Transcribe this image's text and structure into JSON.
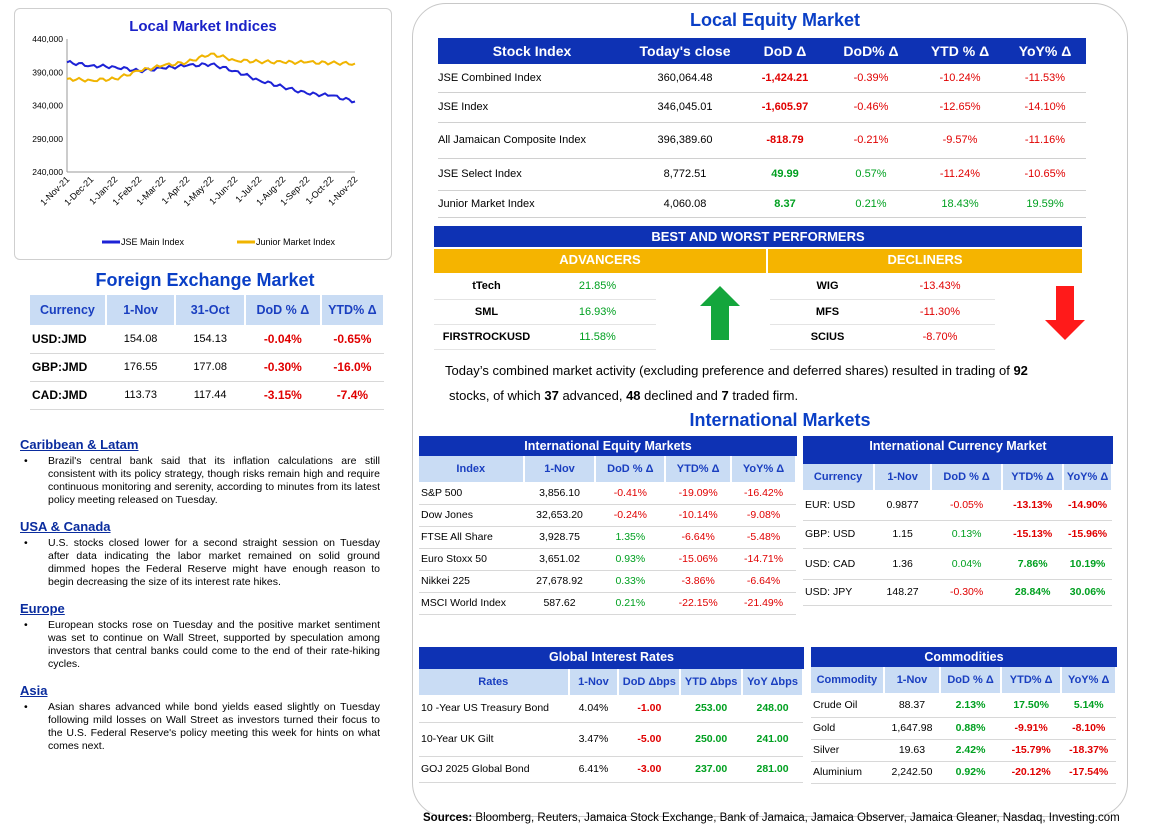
{
  "chart": {
    "title": "Local Market Indices",
    "y_ticks": [
      "440,000",
      "390,000",
      "340,000",
      "290,000",
      "240,000"
    ],
    "x_ticks": [
      "1-Nov-21",
      "1-Dec-21",
      "1-Jan-22",
      "1-Feb-22",
      "1-Mar-22",
      "1-Apr-22",
      "1-May-22",
      "1-Jun-22",
      "1-Jul-22",
      "1-Aug-22",
      "1-Sep-22",
      "1-Oct-22",
      "1-Nov-22"
    ],
    "legend": [
      "JSE Main Index",
      "Junior Market Index"
    ],
    "colors": {
      "main": "#1d22d6",
      "junior": "#f0b400"
    }
  },
  "chart_data": {
    "type": "line",
    "title": "Local Market Indices",
    "x": [
      "1-Nov-21",
      "1-Dec-21",
      "1-Jan-22",
      "1-Feb-22",
      "1-Mar-22",
      "1-Apr-22",
      "1-May-22",
      "1-Jun-22",
      "1-Jul-22",
      "1-Aug-22",
      "1-Sep-22",
      "1-Oct-22",
      "1-Nov-22"
    ],
    "series": [
      {
        "name": "JSE Main Index",
        "values": [
          405000,
          400000,
          398000,
          392000,
          396000,
          400000,
          402000,
          392000,
          378000,
          368000,
          358000,
          355000,
          346000
        ]
      },
      {
        "name": "Junior Market Index",
        "values": [
          380000,
          378000,
          380000,
          392000,
          400000,
          405000,
          418000,
          408000,
          406000,
          405000,
          405000,
          404000,
          403000
        ]
      }
    ],
    "ylim": [
      240000,
      440000
    ]
  },
  "fx": {
    "title": "Foreign Exchange Market",
    "headers": [
      "Currency",
      "1-Nov",
      "31-Oct",
      "DoD % Δ",
      "YTD% Δ"
    ],
    "rows": [
      {
        "cur": "USD:JMD",
        "a": "154.08",
        "b": "154.13",
        "dod": "-0.04%",
        "ytd": "-0.65%"
      },
      {
        "cur": "GBP:JMD",
        "a": "176.55",
        "b": "177.08",
        "dod": "-0.30%",
        "ytd": "-16.0%"
      },
      {
        "cur": "CAD:JMD",
        "a": "113.73",
        "b": "117.44",
        "dod": "-3.15%",
        "ytd": "-7.4%"
      }
    ]
  },
  "news": [
    {
      "heading": "Caribbean & Latam",
      "text": "Brazil's central bank said that its inflation calculations are still consistent with its policy strategy, though risks remain high and require continuous monitoring and serenity, according to minutes from its latest policy meeting released on Tuesday."
    },
    {
      "heading": "USA & Canada",
      "text": "U.S. stocks closed lower for a second straight session on Tuesday after data indicating the labor market remained on solid ground dimmed hopes the Federal Reserve might have enough reason to begin decreasing the size of its interest rate hikes."
    },
    {
      "heading": "Europe",
      "text": "European stocks rose on Tuesday and the positive market sentiment was set to continue on Wall Street, supported by speculation among investors that central banks could come to the end of their rate-hiking cycles."
    },
    {
      "heading": "Asia",
      "text": "Asian shares advanced while bond yields eased slightly on Tuesday following mild losses on Wall Street as investors turned their focus to the U.S. Federal Reserve's policy meeting this week for hints on what comes next."
    }
  ],
  "equity": {
    "title": "Local Equity Market",
    "headers": [
      "Stock Index",
      "Today's close",
      "DoD  Δ",
      "DoD% Δ",
      "YTD % Δ",
      "YoY% Δ"
    ],
    "rows": [
      {
        "name": "JSE Combined Index",
        "close": "360,064.48",
        "dod": "-1,424.21",
        "dodp": "-0.39%",
        "ytd": "-10.24%",
        "yoy": "-11.53%"
      },
      {
        "name": "JSE Index",
        "close": "346,045.01",
        "dod": "-1,605.97",
        "dodp": "-0.46%",
        "ytd": "-12.65%",
        "yoy": "-14.10%"
      },
      {
        "name": "All Jamaican Composite Index",
        "close": "396,389.60",
        "dod": "-818.79",
        "dodp": "-0.21%",
        "ytd": "-9.57%",
        "yoy": "-11.16%"
      },
      {
        "name": "JSE Select Index",
        "close": "8,772.51",
        "dod": "49.99",
        "dodp": "0.57%",
        "ytd": "-11.24%",
        "yoy": "-10.65%"
      },
      {
        "name": "Junior Market Index",
        "close": "4,060.08",
        "dod": "8.37",
        "dodp": "0.21%",
        "ytd": "18.43%",
        "yoy": "19.59%"
      }
    ]
  },
  "performers": {
    "title": "BEST AND WORST PERFORMERS",
    "adv_label": "ADVANCERS",
    "dec_label": "DECLINERS",
    "advancers": [
      {
        "name": "tTech",
        "pct": "21.85%"
      },
      {
        "name": "SML",
        "pct": "16.93%"
      },
      {
        "name": "FIRSTROCKUSD",
        "pct": "11.58%"
      }
    ],
    "decliners": [
      {
        "name": "WIG",
        "pct": "-13.43%"
      },
      {
        "name": "MFS",
        "pct": "-11.30%"
      },
      {
        "name": "SCIUS",
        "pct": "-8.70%"
      }
    ]
  },
  "summary": {
    "line1_pre": "Today’s combined market activity (excluding preference and deferred shares) resulted in trading of ",
    "traded": "92",
    "line2_pre": "stocks, of which ",
    "advanced": "37",
    "mid1": " advanced, ",
    "declined": "48",
    "mid2": " declined and ",
    "firm": "7",
    "end": " traded firm."
  },
  "intl": {
    "title": "International Markets",
    "equity": {
      "title": "International Equity Markets",
      "headers": [
        "Index",
        "1-Nov",
        "DoD % Δ",
        "YTD% Δ",
        "YoY% Δ"
      ],
      "rows": [
        {
          "name": "S&P 500",
          "v": "3,856.10",
          "dod": "-0.41%",
          "ytd": "-19.09%",
          "yoy": "-16.42%"
        },
        {
          "name": "Dow Jones",
          "v": "32,653.20",
          "dod": "-0.24%",
          "ytd": "-10.14%",
          "yoy": "-9.08%"
        },
        {
          "name": "FTSE All Share",
          "v": "3,928.75",
          "dod": "1.35%",
          "ytd": "-6.64%",
          "yoy": "-5.48%"
        },
        {
          "name": "Euro Stoxx 50",
          "v": "3,651.02",
          "dod": "0.93%",
          "ytd": "-15.06%",
          "yoy": "-14.71%"
        },
        {
          "name": "Nikkei 225",
          "v": "27,678.92",
          "dod": "0.33%",
          "ytd": "-3.86%",
          "yoy": "-6.64%"
        },
        {
          "name": "MSCI World Index",
          "v": "587.62",
          "dod": "0.21%",
          "ytd": "-22.15%",
          "yoy": "-21.49%"
        }
      ]
    },
    "currency": {
      "title": "International Currency Market",
      "headers": [
        "Currency",
        "1-Nov",
        "DoD % Δ",
        "YTD% Δ",
        "YoY% Δ"
      ],
      "rows": [
        {
          "name": "EUR: USD",
          "v": "0.9877",
          "dod": "-0.05%",
          "ytd": "-13.13%",
          "yoy": "-14.90%"
        },
        {
          "name": "GBP: USD",
          "v": "1.15",
          "dod": "0.13%",
          "ytd": "-15.13%",
          "yoy": "-15.96%"
        },
        {
          "name": "USD: CAD",
          "v": "1.36",
          "dod": "0.04%",
          "ytd": "7.86%",
          "yoy": "10.19%"
        },
        {
          "name": "USD: JPY",
          "v": "148.27",
          "dod": "-0.30%",
          "ytd": "28.84%",
          "yoy": "30.06%"
        }
      ]
    },
    "rates": {
      "title": "Global Interest Rates",
      "headers": [
        "Rates",
        "1-Nov",
        "DoD Δbps",
        "YTD Δbps",
        "YoY Δbps"
      ],
      "rows": [
        {
          "name": "10 -Year US Treasury Bond",
          "v": "4.04%",
          "dod": "-1.00",
          "ytd": "253.00",
          "yoy": "248.00"
        },
        {
          "name": "10-Year UK Gilt",
          "v": "3.47%",
          "dod": "-5.00",
          "ytd": "250.00",
          "yoy": "241.00"
        },
        {
          "name": "GOJ 2025 Global Bond",
          "v": "6.41%",
          "dod": "-3.00",
          "ytd": "237.00",
          "yoy": "281.00"
        }
      ]
    },
    "commodities": {
      "title": "Commodities",
      "headers": [
        "Commodity",
        "1-Nov",
        "DoD % Δ",
        "YTD% Δ",
        "YoY% Δ"
      ],
      "rows": [
        {
          "name": "Crude Oil",
          "v": "88.37",
          "dod": "2.13%",
          "ytd": "17.50%",
          "yoy": "5.14%"
        },
        {
          "name": "Gold",
          "v": "1,647.98",
          "dod": "0.88%",
          "ytd": "-9.91%",
          "yoy": "-8.10%"
        },
        {
          "name": "Silver",
          "v": "19.63",
          "dod": "2.42%",
          "ytd": "-15.79%",
          "yoy": "-18.37%"
        },
        {
          "name": "Aluminium",
          "v": "2,242.50",
          "dod": "0.92%",
          "ytd": "-20.12%",
          "yoy": "-17.54%"
        }
      ]
    }
  },
  "sources": {
    "label": "Sources:",
    "text": " Bloomberg, Reuters, Jamaica Stock Exchange, Bank of Jamaica, Jamaica Observer, Jamaica Gleaner, Nasdaq, Investing.com"
  }
}
